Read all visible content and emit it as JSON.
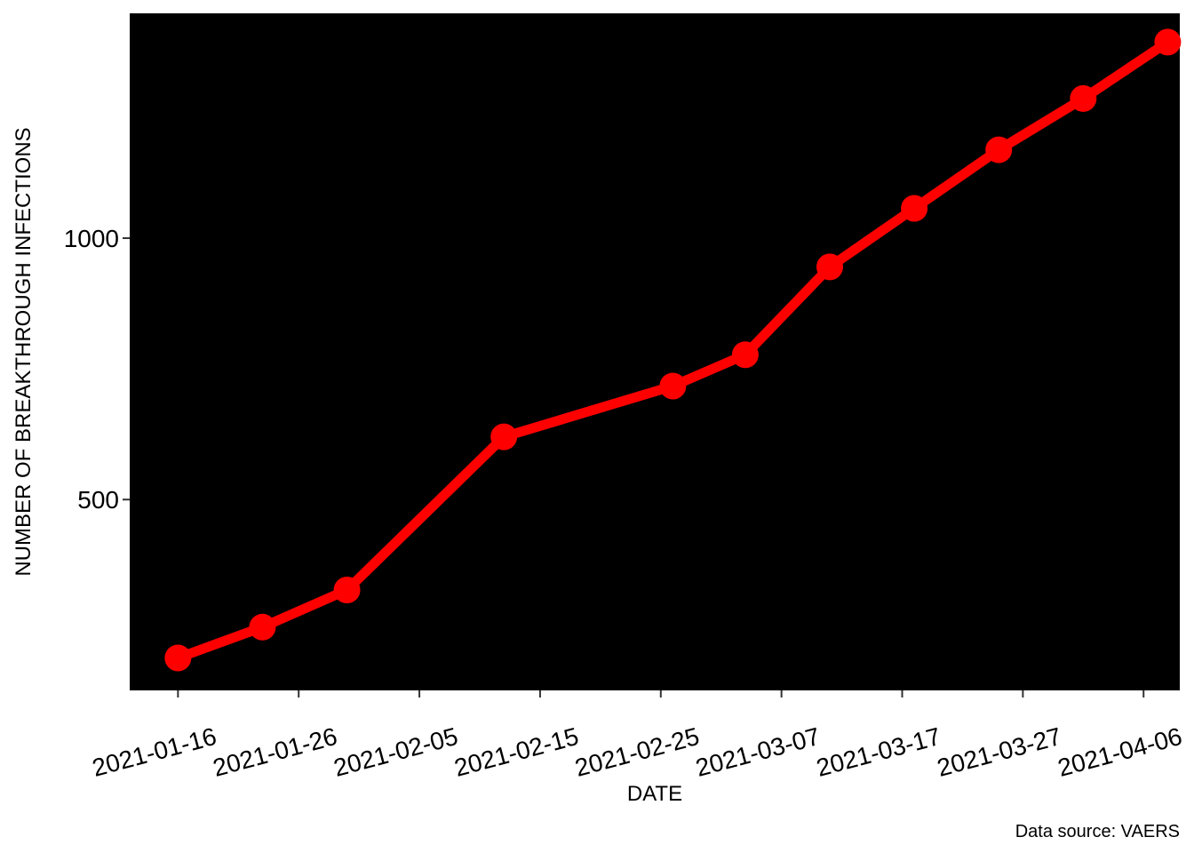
{
  "chart_data": {
    "type": "line",
    "title": "",
    "xlabel": "DATE",
    "ylabel": "NUMBER OF BREAKTHROUGH INFECTIONS",
    "caption": "Data source: VAERS",
    "x_type": "date",
    "xlim": [
      "2021-01-12",
      "2021-04-09"
    ],
    "ylim": [
      135,
      1430
    ],
    "x_ticks": [
      "2021-01-16",
      "2021-01-26",
      "2021-02-05",
      "2021-02-15",
      "2021-02-25",
      "2021-03-07",
      "2021-03-17",
      "2021-03-27",
      "2021-04-06"
    ],
    "y_ticks": [
      500,
      1000
    ],
    "grid": false,
    "legend": "none",
    "panel_color": "#000000",
    "series": [
      {
        "color": "#ff0000",
        "points": [
          {
            "x": "2021-01-16",
            "y": 197
          },
          {
            "x": "2021-01-23",
            "y": 256
          },
          {
            "x": "2021-01-30",
            "y": 327
          },
          {
            "x": "2021-02-12",
            "y": 620
          },
          {
            "x": "2021-02-26",
            "y": 717
          },
          {
            "x": "2021-03-04",
            "y": 777
          },
          {
            "x": "2021-03-11",
            "y": 945
          },
          {
            "x": "2021-03-18",
            "y": 1057
          },
          {
            "x": "2021-03-25",
            "y": 1169
          },
          {
            "x": "2021-04-01",
            "y": 1267
          },
          {
            "x": "2021-04-08",
            "y": 1375
          }
        ]
      }
    ]
  }
}
